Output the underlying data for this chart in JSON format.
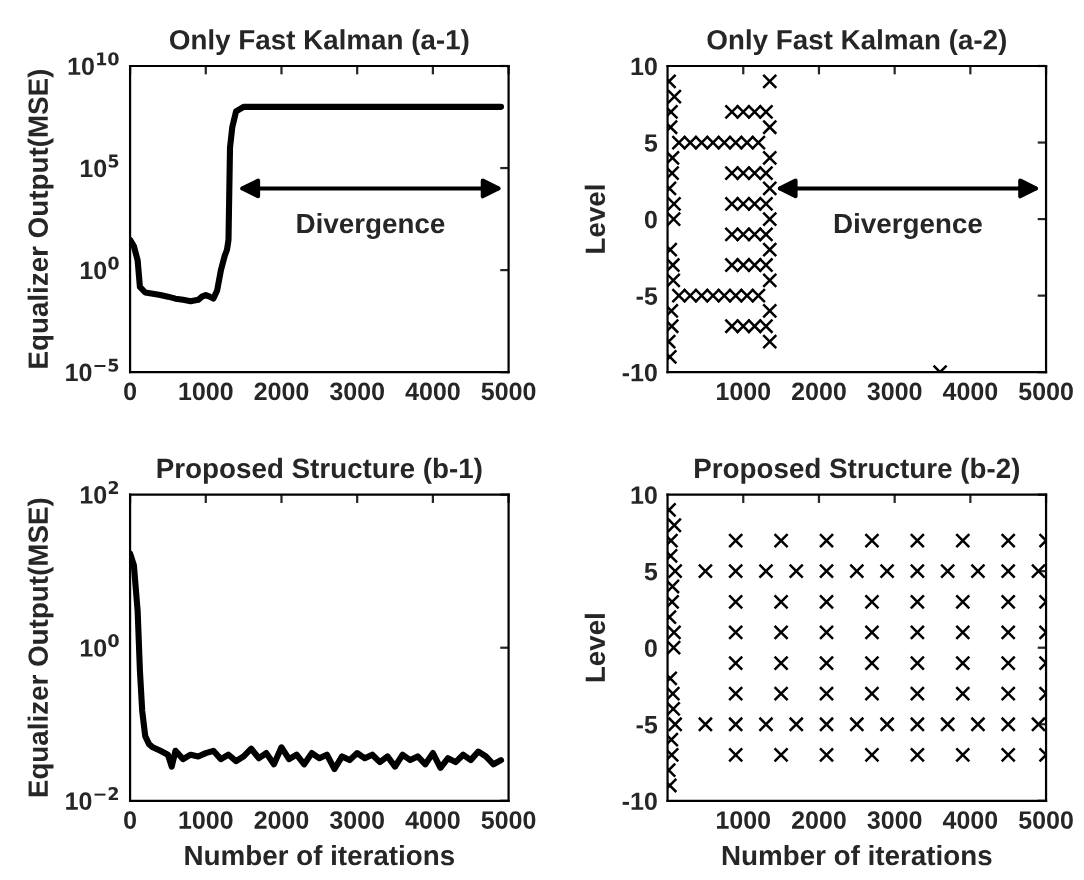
{
  "chart_data": [
    {
      "type": "line",
      "title": "Only Fast Kalman (a-1)",
      "ylabel": "Equalizer Output(MSE)",
      "log": true,
      "xlim": [
        0,
        5000
      ],
      "xticks": [
        0,
        1000,
        2000,
        3000,
        4000,
        5000
      ],
      "ylim": [
        1e-05,
        10000000000.0
      ],
      "yticks": [
        {
          "value": 1e-05,
          "label": "10$^{−5}$"
        },
        {
          "value": 1,
          "label": "10$^{0}$"
        },
        {
          "value": 100000.0,
          "label": "10$^{5}$"
        },
        {
          "value": 10000000000.0,
          "label": "10$^{10}$"
        }
      ],
      "annotations": [
        "Divergence"
      ],
      "marker": "none",
      "line_style": "solid",
      "grid": false,
      "legend": false,
      "series": [
        {
          "color": "#000000",
          "x": [
            0,
            50,
            100,
            130,
            200,
            300,
            400,
            500,
            600,
            700,
            800,
            900,
            950,
            1000,
            1050,
            1100,
            1150,
            1200,
            1250,
            1280,
            1300,
            1320,
            1350,
            1400,
            1500,
            2000,
            3000,
            4000,
            4900
          ],
          "values": [
            30,
            15,
            3,
            0.15,
            0.08,
            0.07,
            0.06,
            0.05,
            0.04,
            0.035,
            0.03,
            0.035,
            0.05,
            0.06,
            0.05,
            0.04,
            0.1,
            1,
            5,
            10,
            30,
            1000000.0,
            10000000.0,
            60000000.0,
            100000000.0,
            100000000.0,
            100000000.0,
            100000000.0,
            100000000.0
          ]
        }
      ]
    },
    {
      "type": "scatter",
      "title": "Only Fast Kalman (a-2)",
      "ylabel": "Level",
      "xlim": [
        0,
        5000
      ],
      "xticks": [
        1000,
        2000,
        3000,
        4000,
        5000
      ],
      "ylim": [
        -10,
        10
      ],
      "yticks": [
        -10,
        -5,
        0,
        5,
        10
      ],
      "annotations": [
        "Divergence"
      ],
      "marker": "cross",
      "grid": false,
      "legend": false,
      "series": [
        {
          "color": "#000000",
          "x": [
            20,
            30,
            40,
            50,
            60,
            70,
            80,
            90,
            15,
            25,
            35,
            45,
            55,
            65,
            75,
            85,
            150,
            300,
            450,
            600,
            750,
            900,
            1050,
            1200,
            150,
            300,
            450,
            600,
            750,
            900,
            1050,
            1200,
            850,
            1000,
            1150,
            1300,
            850,
            1000,
            1150,
            1300,
            850,
            1000,
            1150,
            1300,
            850,
            1000,
            1150,
            1300,
            850,
            1000,
            1150,
            1300,
            850,
            1000,
            1150,
            1300,
            1350,
            1350,
            1350,
            1350,
            1350,
            1350,
            1350,
            1350,
            1350,
            3600
          ],
          "values": [
            9,
            -9,
            6,
            -6,
            3,
            -3,
            0,
            8,
            -8,
            2,
            -2,
            7,
            -7,
            4,
            -4,
            1,
            5,
            5,
            5,
            5,
            5,
            5,
            5,
            5,
            -5,
            -5,
            -5,
            -5,
            -5,
            -5,
            -5,
            -5,
            7,
            7,
            7,
            7,
            3,
            3,
            3,
            3,
            1,
            1,
            1,
            1,
            -1,
            -1,
            -1,
            -1,
            -3,
            -3,
            -3,
            -3,
            -7,
            -7,
            -7,
            -7,
            9,
            6,
            4,
            2,
            0,
            -2,
            -4,
            -6,
            -8,
            -10
          ]
        }
      ]
    },
    {
      "type": "line",
      "title": "Proposed Structure (b-1)",
      "xlabel": "Number of iterations",
      "ylabel": "Equalizer Output(MSE)",
      "log": true,
      "xlim": [
        0,
        5000
      ],
      "xticks": [
        0,
        1000,
        2000,
        3000,
        4000,
        5000
      ],
      "ylim": [
        0.01,
        100
      ],
      "yticks": [
        {
          "value": 0.01,
          "label": "10$^{−2}$"
        },
        {
          "value": 1,
          "label": "10$^{0}$"
        },
        {
          "value": 100,
          "label": "10$^{2}$"
        }
      ],
      "marker": "none",
      "line_style": "solid",
      "grid": false,
      "legend": false,
      "series": [
        {
          "color": "#000000",
          "x": [
            0,
            50,
            100,
            130,
            160,
            200,
            250,
            300,
            400,
            500,
            550,
            600,
            700,
            800,
            900,
            1000,
            1100,
            1200,
            1300,
            1400,
            1500,
            1600,
            1700,
            1800,
            1900,
            2000,
            2100,
            2200,
            2300,
            2400,
            2500,
            2600,
            2700,
            2800,
            2900,
            3000,
            3100,
            3200,
            3300,
            3400,
            3500,
            3600,
            3700,
            3800,
            3900,
            4000,
            4100,
            4200,
            4300,
            4400,
            4500,
            4600,
            4700,
            4800,
            4900
          ],
          "values": [
            17,
            12,
            3,
            0.5,
            0.15,
            0.07,
            0.055,
            0.05,
            0.045,
            0.04,
            0.028,
            0.045,
            0.035,
            0.04,
            0.038,
            0.042,
            0.045,
            0.035,
            0.04,
            0.033,
            0.038,
            0.048,
            0.036,
            0.042,
            0.03,
            0.05,
            0.035,
            0.04,
            0.03,
            0.042,
            0.036,
            0.04,
            0.026,
            0.038,
            0.034,
            0.042,
            0.036,
            0.04,
            0.032,
            0.038,
            0.028,
            0.04,
            0.034,
            0.038,
            0.03,
            0.042,
            0.027,
            0.036,
            0.032,
            0.04,
            0.034,
            0.044,
            0.038,
            0.03,
            0.034
          ]
        }
      ]
    },
    {
      "type": "scatter",
      "title": "Proposed Structure (b-2)",
      "xlabel": "Number of iterations",
      "ylabel": "Level",
      "xlim": [
        0,
        5000
      ],
      "xticks": [
        1000,
        2000,
        3000,
        4000,
        5000
      ],
      "ylim": [
        -10,
        10
      ],
      "yticks": [
        -10,
        -5,
        0,
        5,
        10
      ],
      "marker": "cross",
      "grid": false,
      "legend": false,
      "series": [
        {
          "color": "#000000",
          "x": [
            20,
            30,
            40,
            50,
            60,
            70,
            80,
            90,
            15,
            25,
            35,
            45,
            55,
            65,
            75,
            85,
            100,
            500,
            900,
            1300,
            1700,
            2100,
            2500,
            2900,
            3300,
            3700,
            4100,
            4500,
            4900,
            100,
            500,
            900,
            1300,
            1700,
            2100,
            2500,
            2900,
            3300,
            3700,
            4100,
            4500,
            4900,
            900,
            1500,
            2100,
            2700,
            3300,
            3900,
            4500,
            5000,
            900,
            1500,
            2100,
            2700,
            3300,
            3900,
            4500,
            5000,
            900,
            1500,
            2100,
            2700,
            3300,
            3900,
            4500,
            5000,
            900,
            1500,
            2100,
            2700,
            3300,
            3900,
            4500,
            5000,
            900,
            1500,
            2100,
            2700,
            3300,
            3900,
            4500,
            5000,
            900,
            1500,
            2100,
            2700,
            3300,
            3900,
            4500,
            5000
          ],
          "values": [
            9,
            -9,
            6,
            -6,
            3,
            -3,
            0,
            8,
            -8,
            2,
            -2,
            7,
            -7,
            4,
            -4,
            1,
            5,
            5,
            5,
            5,
            5,
            5,
            5,
            5,
            5,
            5,
            5,
            5,
            5,
            -5,
            -5,
            -5,
            -5,
            -5,
            -5,
            -5,
            -5,
            -5,
            -5,
            -5,
            -5,
            -5,
            7,
            7,
            7,
            7,
            7,
            7,
            7,
            7,
            3,
            3,
            3,
            3,
            3,
            3,
            3,
            3,
            1,
            1,
            1,
            1,
            1,
            1,
            1,
            1,
            -1,
            -1,
            -1,
            -1,
            -1,
            -1,
            -1,
            -1,
            -3,
            -3,
            -3,
            -3,
            -3,
            -3,
            -3,
            -3,
            -7,
            -7,
            -7,
            -7,
            -7,
            -7,
            -7,
            -7
          ]
        }
      ]
    }
  ]
}
